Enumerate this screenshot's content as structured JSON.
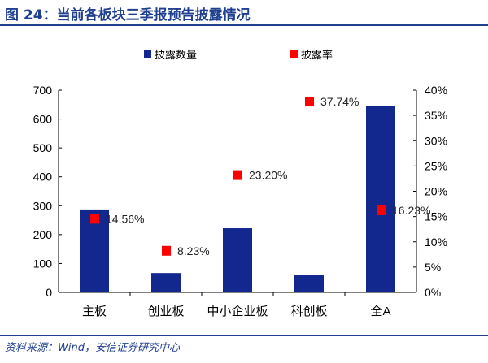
{
  "title": "图 24：当前各板块三季报预告披露情况",
  "source": "资料来源：Wind，安信证券研究中心",
  "chart_data": {
    "type": "bar",
    "categories": [
      "主板",
      "创业板",
      "中小企业板",
      "科创板",
      "全A"
    ],
    "series": [
      {
        "name": "披露数量",
        "type": "bar",
        "axis": "left",
        "color": "#13288f",
        "values": [
          287,
          67,
          222,
          59,
          644
        ]
      },
      {
        "name": "披露率",
        "type": "scatter",
        "axis": "right",
        "color": "#ff0000",
        "values": [
          14.56,
          8.23,
          23.2,
          37.74,
          16.23
        ],
        "labels": [
          "14.56%",
          "8.23%",
          "23.20%",
          "37.74%",
          "16.23%"
        ]
      }
    ],
    "ylim": [
      0,
      700
    ],
    "yticks": [
      "0",
      "100",
      "200",
      "300",
      "400",
      "500",
      "600",
      "700"
    ],
    "y2lim": [
      0,
      40
    ],
    "y2ticks": [
      "0%",
      "5%",
      "10%",
      "15%",
      "20%",
      "25%",
      "30%",
      "35%",
      "40%"
    ],
    "legend": "top",
    "grid": false
  }
}
